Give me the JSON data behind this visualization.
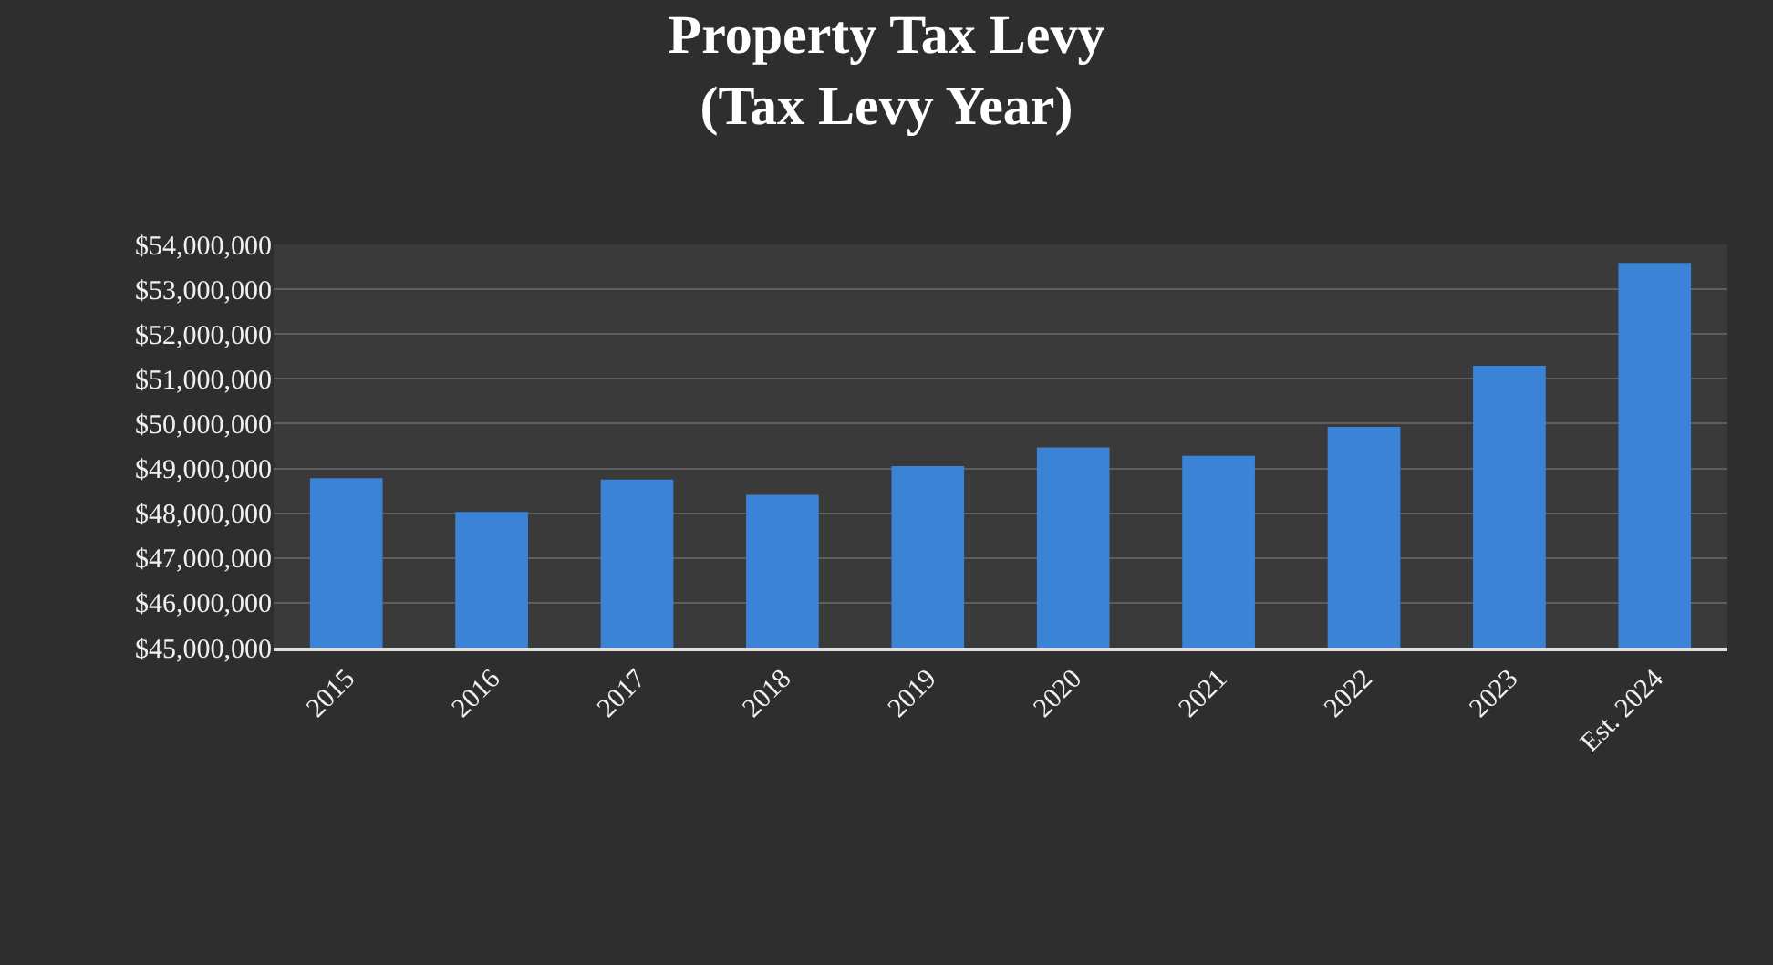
{
  "chart_data": {
    "type": "bar",
    "title": "Property Tax Levy\n(Tax Levy Year)",
    "categories": [
      "2015",
      "2016",
      "2017",
      "2018",
      "2019",
      "2020",
      "2021",
      "2022",
      "2023",
      "Est. 2024"
    ],
    "values": [
      48780000,
      48030000,
      48750000,
      48410000,
      49050000,
      49470000,
      49280000,
      49930000,
      51290000,
      53590000
    ],
    "color": "#3b83d6",
    "ylim": [
      45000000,
      54000000
    ],
    "yticks": [
      {
        "value": 45000000,
        "label": "$45,000,000"
      },
      {
        "value": 46000000,
        "label": "$46,000,000"
      },
      {
        "value": 47000000,
        "label": "$47,000,000"
      },
      {
        "value": 48000000,
        "label": "$48,000,000"
      },
      {
        "value": 49000000,
        "label": "$49,000,000"
      },
      {
        "value": 50000000,
        "label": "$50,000,000"
      },
      {
        "value": 51000000,
        "label": "$51,000,000"
      },
      {
        "value": 52000000,
        "label": "$52,000,000"
      },
      {
        "value": 53000000,
        "label": "$53,000,000"
      },
      {
        "value": 54000000,
        "label": "$54,000,000"
      }
    ],
    "grid": "y"
  }
}
